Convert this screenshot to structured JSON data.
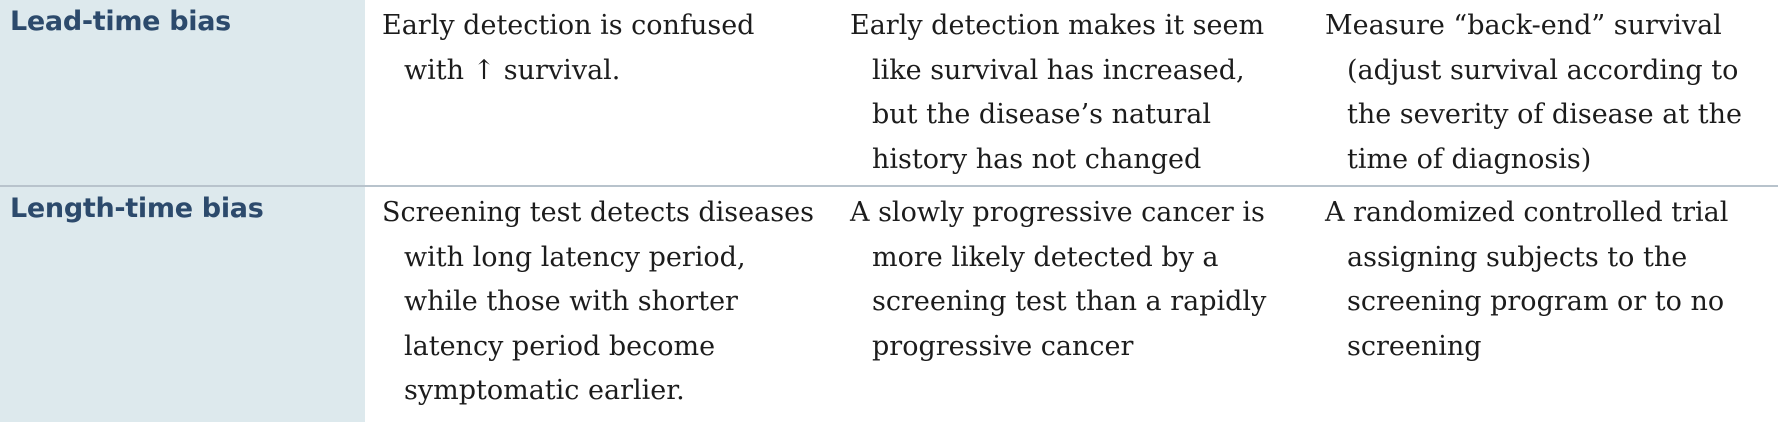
{
  "rows": [
    {
      "bias": "Lead-time bias",
      "definition": "Early detection is confused with ↑ survival.",
      "example": "Early detection makes it seem like survival has increased, but the disease’s natural history has not changed",
      "avoidance": "Measure “back-end” survival (adjust survival according to the severity of disease at the time of diagnosis)"
    },
    {
      "bias": "Length-time bias",
      "definition": "Screening test detects diseases with long latency period, while those with shorter latency period become symptomatic earlier.",
      "example": "A slowly progressive cancer is more likely detected by a screening test than a rapidly progressive cancer",
      "avoidance": "A randomized controlled trial assigning subjects to the screening program or to no screening"
    }
  ]
}
